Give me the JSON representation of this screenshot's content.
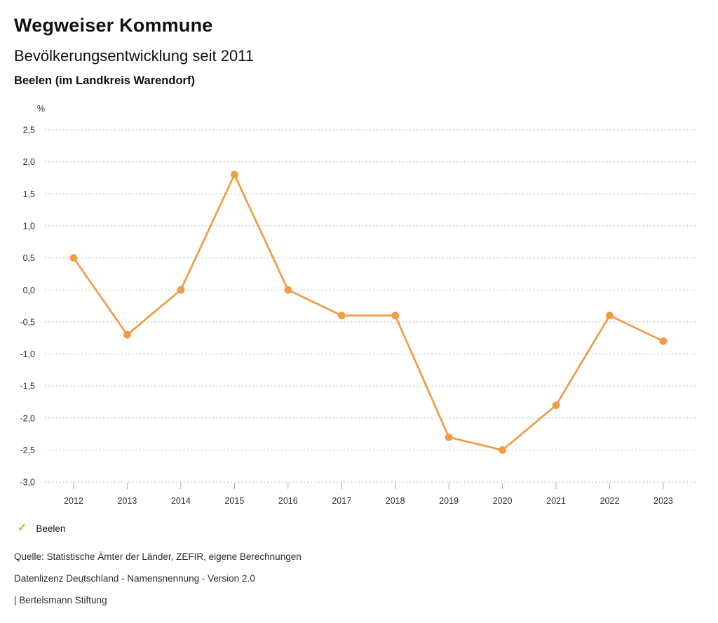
{
  "header": {
    "title": "Wegweiser Kommune",
    "subtitle": "Bevölkerungsentwicklung seit 2011",
    "region": "Beelen (im Landkreis Warendorf)"
  },
  "chart_data": {
    "type": "line",
    "title": "Bevölkerungsentwicklung seit 2011",
    "unit_label": "%",
    "categories": [
      "2012",
      "2013",
      "2014",
      "2015",
      "2016",
      "2017",
      "2018",
      "2019",
      "2020",
      "2021",
      "2022",
      "2023"
    ],
    "series": [
      {
        "name": "Beelen",
        "values": [
          0.5,
          -0.7,
          0.0,
          1.8,
          0.0,
          -0.4,
          -0.4,
          -2.3,
          -2.5,
          -1.8,
          -0.4,
          -0.8
        ],
        "color": "#EF9C44"
      }
    ],
    "ylim": [
      -3.0,
      2.5
    ],
    "y_ticks": [
      2.5,
      2.0,
      1.5,
      1.0,
      0.5,
      0.0,
      -0.5,
      -1.0,
      -1.5,
      -2.0,
      -2.5,
      -3.0
    ],
    "y_tick_labels": [
      "2,5",
      "2,0",
      "1,5",
      "1,0",
      "0,5",
      "0,0",
      "-0,5",
      "-1,0",
      "-1,5",
      "-2,0",
      "-2,5",
      "-3,0"
    ],
    "grid": "horizontal-dotted",
    "legend_position": "bottom-left"
  },
  "legend": {
    "check_icon": "✓",
    "label": "Beelen"
  },
  "footer": {
    "source": "Quelle: Statistische Ämter der Länder, ZEFIR, eigene Berechnungen",
    "license": "Datenlizenz Deutschland - Namensnennung - Version 2.0",
    "attribution": "| Bertelsmann Stiftung"
  },
  "colors": {
    "accent": "#EF9C44",
    "grid": "#b3b3b3",
    "text": "#1a1a1a",
    "muted": "#2e2e2e"
  }
}
